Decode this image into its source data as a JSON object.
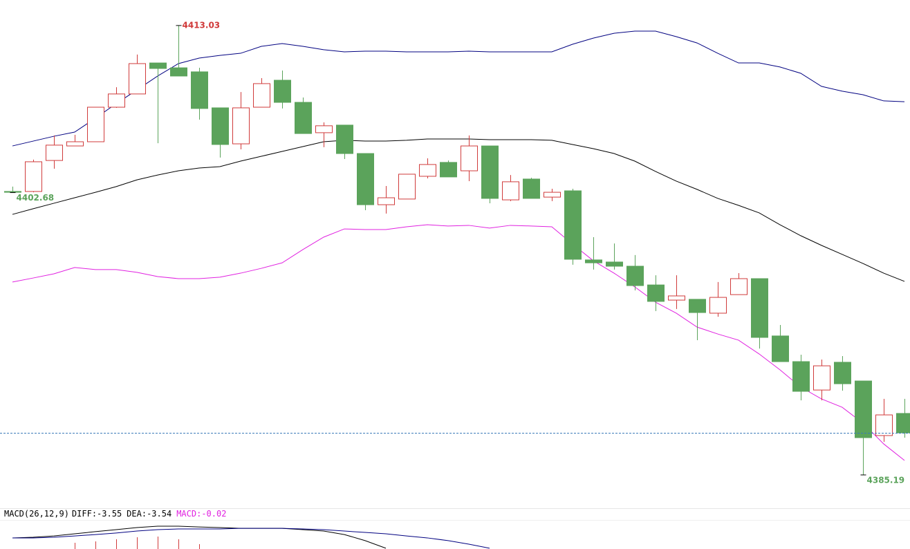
{
  "chart_data": {
    "type": "candlestick",
    "ylim": [
      4383.13,
      4414.61
    ],
    "up_color": "#d03a3a",
    "down_color": "#5ba35b",
    "candles": {
      "open": [
        4402.75,
        4402.75,
        4404.67,
        4405.57,
        4405.83,
        4407.97,
        4408.79,
        4410.71,
        4410.41,
        4410.16,
        4407.93,
        4405.7,
        4407.97,
        4409.64,
        4408.27,
        4406.39,
        4406.86,
        4405.1,
        4401.93,
        4402.28,
        4403.69,
        4404.55,
        4404.03,
        4405.57,
        4402.23,
        4403.52,
        4402.4,
        4402.79,
        4398.51,
        4398.38,
        4398.12,
        4396.96,
        4396.02,
        4396.07,
        4395.21,
        4396.36,
        4397.35,
        4393.8,
        4392.21,
        4390.45,
        4392.17,
        4391.01,
        4387.63,
        4389.0
      ],
      "high": [
        4403.05,
        4404.72,
        4406.22,
        4406.26,
        4407.97,
        4409.21,
        4411.23,
        4410.71,
        4413.03,
        4410.41,
        4407.93,
        4408.91,
        4409.77,
        4410.24,
        4408.57,
        4407.03,
        4406.86,
        4405.1,
        4403.09,
        4403.82,
        4404.8,
        4404.67,
        4406.22,
        4405.57,
        4403.77,
        4403.6,
        4402.92,
        4402.92,
        4399.92,
        4399.53,
        4398.81,
        4397.56,
        4397.56,
        4396.07,
        4397.14,
        4397.69,
        4397.35,
        4394.48,
        4392.64,
        4392.34,
        4392.55,
        4391.01,
        4389.9,
        4389.9
      ],
      "low": [
        4402.68,
        4402.7,
        4404.16,
        4405.57,
        4405.83,
        4407.93,
        4408.79,
        4405.74,
        4409.9,
        4407.2,
        4404.85,
        4405.36,
        4407.97,
        4407.89,
        4406.34,
        4405.49,
        4404.76,
        4401.59,
        4401.38,
        4402.28,
        4403.56,
        4403.65,
        4403.39,
        4402.02,
        4402.15,
        4402.32,
        4402.15,
        4398.21,
        4397.91,
        4397.91,
        4396.62,
        4395.34,
        4395.47,
        4393.54,
        4394.99,
        4396.36,
        4393.02,
        4392.21,
        4389.81,
        4389.81,
        4390.41,
        4385.19,
        4387.24,
        4387.5
      ],
      "close": [
        4402.7,
        4404.59,
        4405.62,
        4405.83,
        4407.97,
        4408.79,
        4410.67,
        4410.37,
        4409.9,
        4407.89,
        4405.66,
        4407.93,
        4409.43,
        4408.27,
        4406.34,
        4406.82,
        4405.1,
        4401.93,
        4402.36,
        4403.82,
        4404.42,
        4403.65,
        4405.57,
        4402.32,
        4403.35,
        4402.32,
        4402.7,
        4398.55,
        4398.33,
        4398.12,
        4396.92,
        4395.94,
        4396.28,
        4395.25,
        4396.19,
        4397.35,
        4393.71,
        4392.21,
        4390.37,
        4391.95,
        4390.84,
        4387.5,
        4388.91,
        4387.8
      ]
    },
    "bands": [
      {
        "color": "#000080",
        "values": [
          4405.57,
          4405.87,
          4406.17,
          4406.43,
          4407.29,
          4408.19,
          4409.04,
          4409.9,
          4410.67,
          4411.01,
          4411.18,
          4411.31,
          4411.74,
          4411.91,
          4411.74,
          4411.53,
          4411.4,
          4411.44,
          4411.44,
          4411.4,
          4411.4,
          4411.4,
          4411.44,
          4411.4,
          4411.4,
          4411.4,
          4411.4,
          4411.87,
          4412.25,
          4412.55,
          4412.68,
          4412.68,
          4412.34,
          4411.95,
          4411.31,
          4410.71,
          4410.71,
          4410.46,
          4410.07,
          4409.26,
          4408.96,
          4408.74,
          4408.36,
          4408.31
        ]
      },
      {
        "color": "#000000",
        "values": [
          4401.33,
          4401.68,
          4402.02,
          4402.36,
          4402.7,
          4403.05,
          4403.47,
          4403.77,
          4404.03,
          4404.2,
          4404.29,
          4404.63,
          4404.93,
          4405.23,
          4405.53,
          4405.83,
          4405.92,
          4405.87,
          4405.87,
          4405.92,
          4406.0,
          4406.0,
          4406.0,
          4405.96,
          4405.96,
          4405.96,
          4405.92,
          4405.66,
          4405.4,
          4405.1,
          4404.63,
          4403.99,
          4403.39,
          4402.88,
          4402.32,
          4401.89,
          4401.42,
          4400.69,
          4400.01,
          4399.41,
          4398.85,
          4398.29,
          4397.69,
          4397.18
        ]
      },
      {
        "color": "#e020e0",
        "values": [
          4397.14,
          4397.39,
          4397.65,
          4398.04,
          4397.91,
          4397.91,
          4397.74,
          4397.48,
          4397.35,
          4397.35,
          4397.44,
          4397.69,
          4397.99,
          4398.33,
          4399.15,
          4399.92,
          4400.43,
          4400.39,
          4400.39,
          4400.56,
          4400.69,
          4400.61,
          4400.65,
          4400.48,
          4400.65,
          4400.61,
          4400.56,
          4399.49,
          4398.46,
          4397.69,
          4396.84,
          4395.89,
          4395.21,
          4394.35,
          4393.92,
          4393.54,
          4392.68,
          4391.7,
          4390.63,
          4389.9,
          4389.38,
          4388.4,
          4387.11,
          4386.09
        ]
      }
    ],
    "annotations": [
      4413.03,
      4402.68,
      4385.19
    ],
    "last_line_color": "#3a7ab8",
    "macd": {
      "indicator": "MACD(26,12,9)",
      "items": [
        {
          "text": "DIFF:-3.55",
          "color": "#000000"
        },
        {
          "text": "DEA:-3.54",
          "color": "#000000"
        },
        {
          "text": "MACD:-0.02",
          "color": "#e020e0"
        }
      ],
      "ylim": [
        0,
        2
      ],
      "lines": [
        {
          "color": "#000000",
          "values": [
            0.73,
            0.77,
            0.86,
            1.0,
            1.14,
            1.27,
            1.41,
            1.5,
            1.5,
            1.45,
            1.41,
            1.36,
            1.36,
            1.36,
            1.27,
            1.18,
            0.95,
            0.55,
            0.05,
            null,
            null,
            null,
            null,
            null,
            null,
            null,
            null,
            null,
            null,
            null,
            null,
            null,
            null,
            null,
            null,
            null,
            null,
            null,
            null,
            null,
            null,
            null,
            null,
            null
          ]
        },
        {
          "color": "#000080",
          "values": [
            0.73,
            0.73,
            0.77,
            0.86,
            0.95,
            1.05,
            1.18,
            1.27,
            1.32,
            1.32,
            1.32,
            1.36,
            1.36,
            1.36,
            1.32,
            1.27,
            1.18,
            1.09,
            1.0,
            0.86,
            0.73,
            0.55,
            0.32,
            0.05,
            null,
            null,
            null,
            null,
            null,
            null,
            null,
            null,
            null,
            null,
            null,
            null,
            null,
            null,
            null,
            null,
            null,
            null,
            null,
            null
          ]
        }
      ],
      "bar_color": "#d03a3a",
      "bars": [
        null,
        null,
        null,
        0.41,
        0.5,
        0.64,
        0.77,
        0.82,
        0.64,
        0.32,
        null,
        null,
        null,
        null,
        null,
        null,
        null,
        null,
        null,
        null,
        null,
        null,
        null,
        null,
        null,
        null,
        null,
        null,
        null,
        null,
        null,
        null,
        null,
        null,
        null,
        null,
        null,
        null,
        null,
        null,
        null,
        null,
        null,
        null
      ]
    }
  }
}
